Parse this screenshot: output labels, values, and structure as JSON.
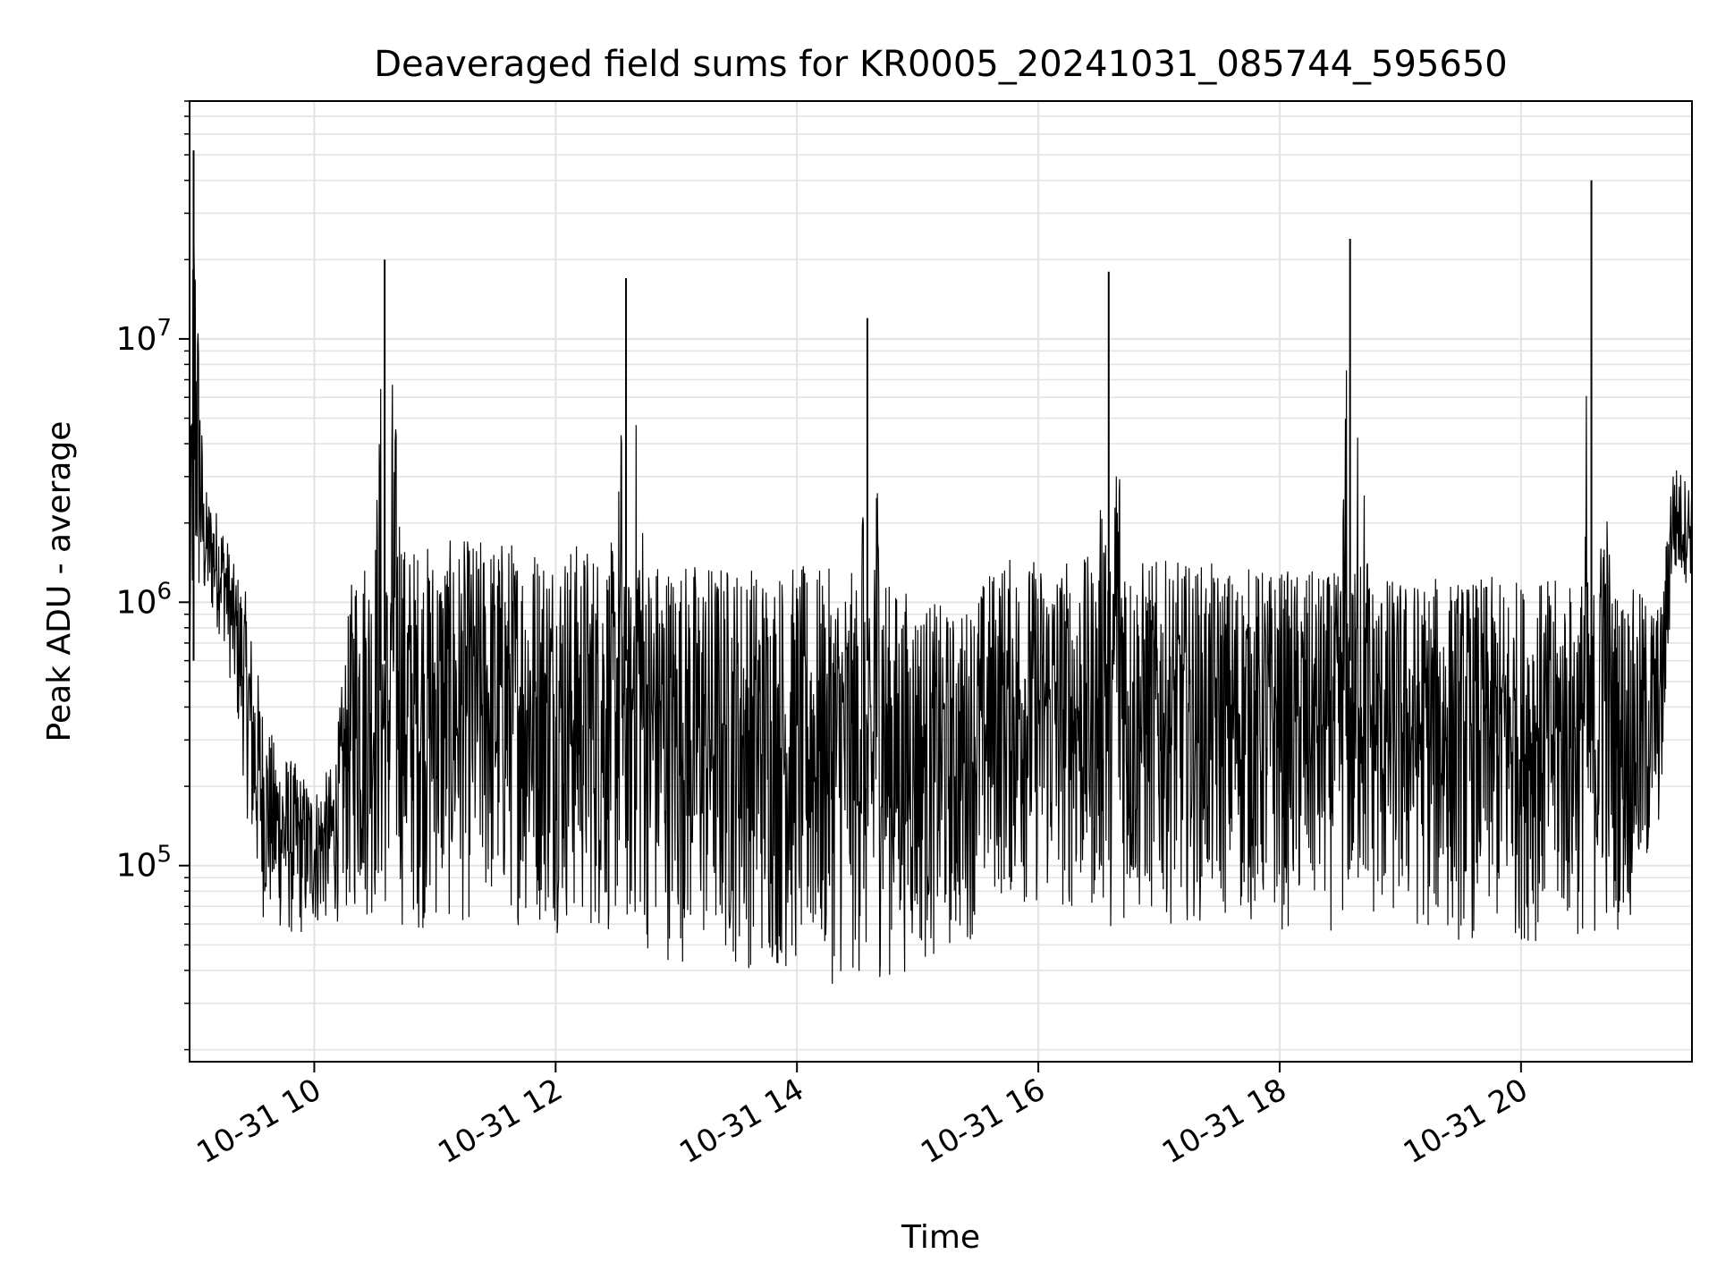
{
  "chart_data": {
    "type": "line",
    "title": "Deaveraged field sums for KR0005_20241031_085744_595650",
    "xlabel": "Time",
    "ylabel": "Peak ADU - average",
    "x_range": [
      "2024-10-31 08:58",
      "2024-10-31 21:25"
    ],
    "y_scale": "log",
    "ylim": [
      18000,
      80000000
    ],
    "grid": true,
    "line_color": "#000000",
    "x_ticks": [
      {
        "time": "2024-10-31 10:00",
        "label": "10-31 10"
      },
      {
        "time": "2024-10-31 12:00",
        "label": "10-31 12"
      },
      {
        "time": "2024-10-31 14:00",
        "label": "10-31 14"
      },
      {
        "time": "2024-10-31 16:00",
        "label": "10-31 16"
      },
      {
        "time": "2024-10-31 18:00",
        "label": "10-31 18"
      },
      {
        "time": "2024-10-31 20:00",
        "label": "10-31 20"
      }
    ],
    "y_ticks": [
      {
        "value": 100000,
        "label": "10",
        "exponent": "5"
      },
      {
        "value": 1000000,
        "label": "10",
        "exponent": "6"
      },
      {
        "value": 10000000,
        "label": "10",
        "exponent": "7"
      }
    ],
    "series": [
      {
        "x": [
          "2024-10-31 08:58",
          "2024-10-31 09:00",
          "2024-10-31 09:05",
          "2024-10-31 09:10",
          "2024-10-31 09:15",
          "2024-10-31 09:20",
          "2024-10-31 09:25",
          "2024-10-31 09:30",
          "2024-10-31 09:35",
          "2024-10-31 09:40",
          "2024-10-31 09:50",
          "2024-10-31 10:00",
          "2024-10-31 10:10",
          "2024-10-31 10:20",
          "2024-10-31 10:30",
          "2024-10-31 10:35",
          "2024-10-31 10:45",
          "2024-10-31 11:00",
          "2024-10-31 11:30",
          "2024-10-31 12:00",
          "2024-10-31 12:30",
          "2024-10-31 12:35",
          "2024-10-31 12:45",
          "2024-10-31 13:00",
          "2024-10-31 13:30",
          "2024-10-31 14:00",
          "2024-10-31 14:30",
          "2024-10-31 14:35",
          "2024-10-31 14:45",
          "2024-10-31 15:00",
          "2024-10-31 15:20",
          "2024-10-31 15:40",
          "2024-10-31 16:00",
          "2024-10-31 16:30",
          "2024-10-31 16:35",
          "2024-10-31 16:45",
          "2024-10-31 17:00",
          "2024-10-31 17:30",
          "2024-10-31 18:00",
          "2024-10-31 18:30",
          "2024-10-31 18:35",
          "2024-10-31 18:45",
          "2024-10-31 19:00",
          "2024-10-31 19:30",
          "2024-10-31 20:00",
          "2024-10-31 20:30",
          "2024-10-31 20:35",
          "2024-10-31 20:45",
          "2024-10-31 21:00",
          "2024-10-31 21:10",
          "2024-10-31 21:15",
          "2024-10-31 21:25"
        ],
        "y_high": [
          1300000,
          52000000,
          2800000,
          2400000,
          2000000,
          1400000,
          1200000,
          700000,
          400000,
          300000,
          250000,
          200000,
          250000,
          1600000,
          1700000,
          20000000,
          1700000,
          1700000,
          1800000,
          1750000,
          1700000,
          17000000,
          1600000,
          1500000,
          1450000,
          1400000,
          1300000,
          12000000,
          1200000,
          1100000,
          900000,
          1500000,
          1500000,
          1500000,
          18000000,
          1500000,
          1450000,
          1400000,
          1350000,
          1300000,
          24000000,
          1300000,
          1250000,
          1250000,
          1250000,
          1200000,
          40000000,
          1200000,
          1100000,
          1000000,
          3500000,
          2800000
        ],
        "y_low": [
          350000,
          600000,
          900000,
          800000,
          700000,
          400000,
          200000,
          80000,
          60000,
          55000,
          50000,
          55000,
          60000,
          60000,
          58000,
          60000,
          55000,
          55000,
          60000,
          55000,
          50000,
          50000,
          45000,
          42000,
          40000,
          36000,
          34000,
          35000,
          36000,
          40000,
          45000,
          70000,
          65000,
          60000,
          58000,
          55000,
          60000,
          60000,
          55000,
          55000,
          55000,
          55000,
          55000,
          50000,
          50000,
          50000,
          50000,
          55000,
          60000,
          150000,
          1100000,
          1200000
        ],
        "spikes": [
          {
            "time": "2024-10-31 09:00",
            "value": 52000000
          },
          {
            "time": "2024-10-31 10:35",
            "value": 20000000
          },
          {
            "time": "2024-10-31 12:35",
            "value": 17000000
          },
          {
            "time": "2024-10-31 14:35",
            "value": 12000000
          },
          {
            "time": "2024-10-31 16:35",
            "value": 18000000
          },
          {
            "time": "2024-10-31 18:35",
            "value": 24000000
          },
          {
            "time": "2024-10-31 20:35",
            "value": 40000000
          }
        ]
      }
    ]
  }
}
